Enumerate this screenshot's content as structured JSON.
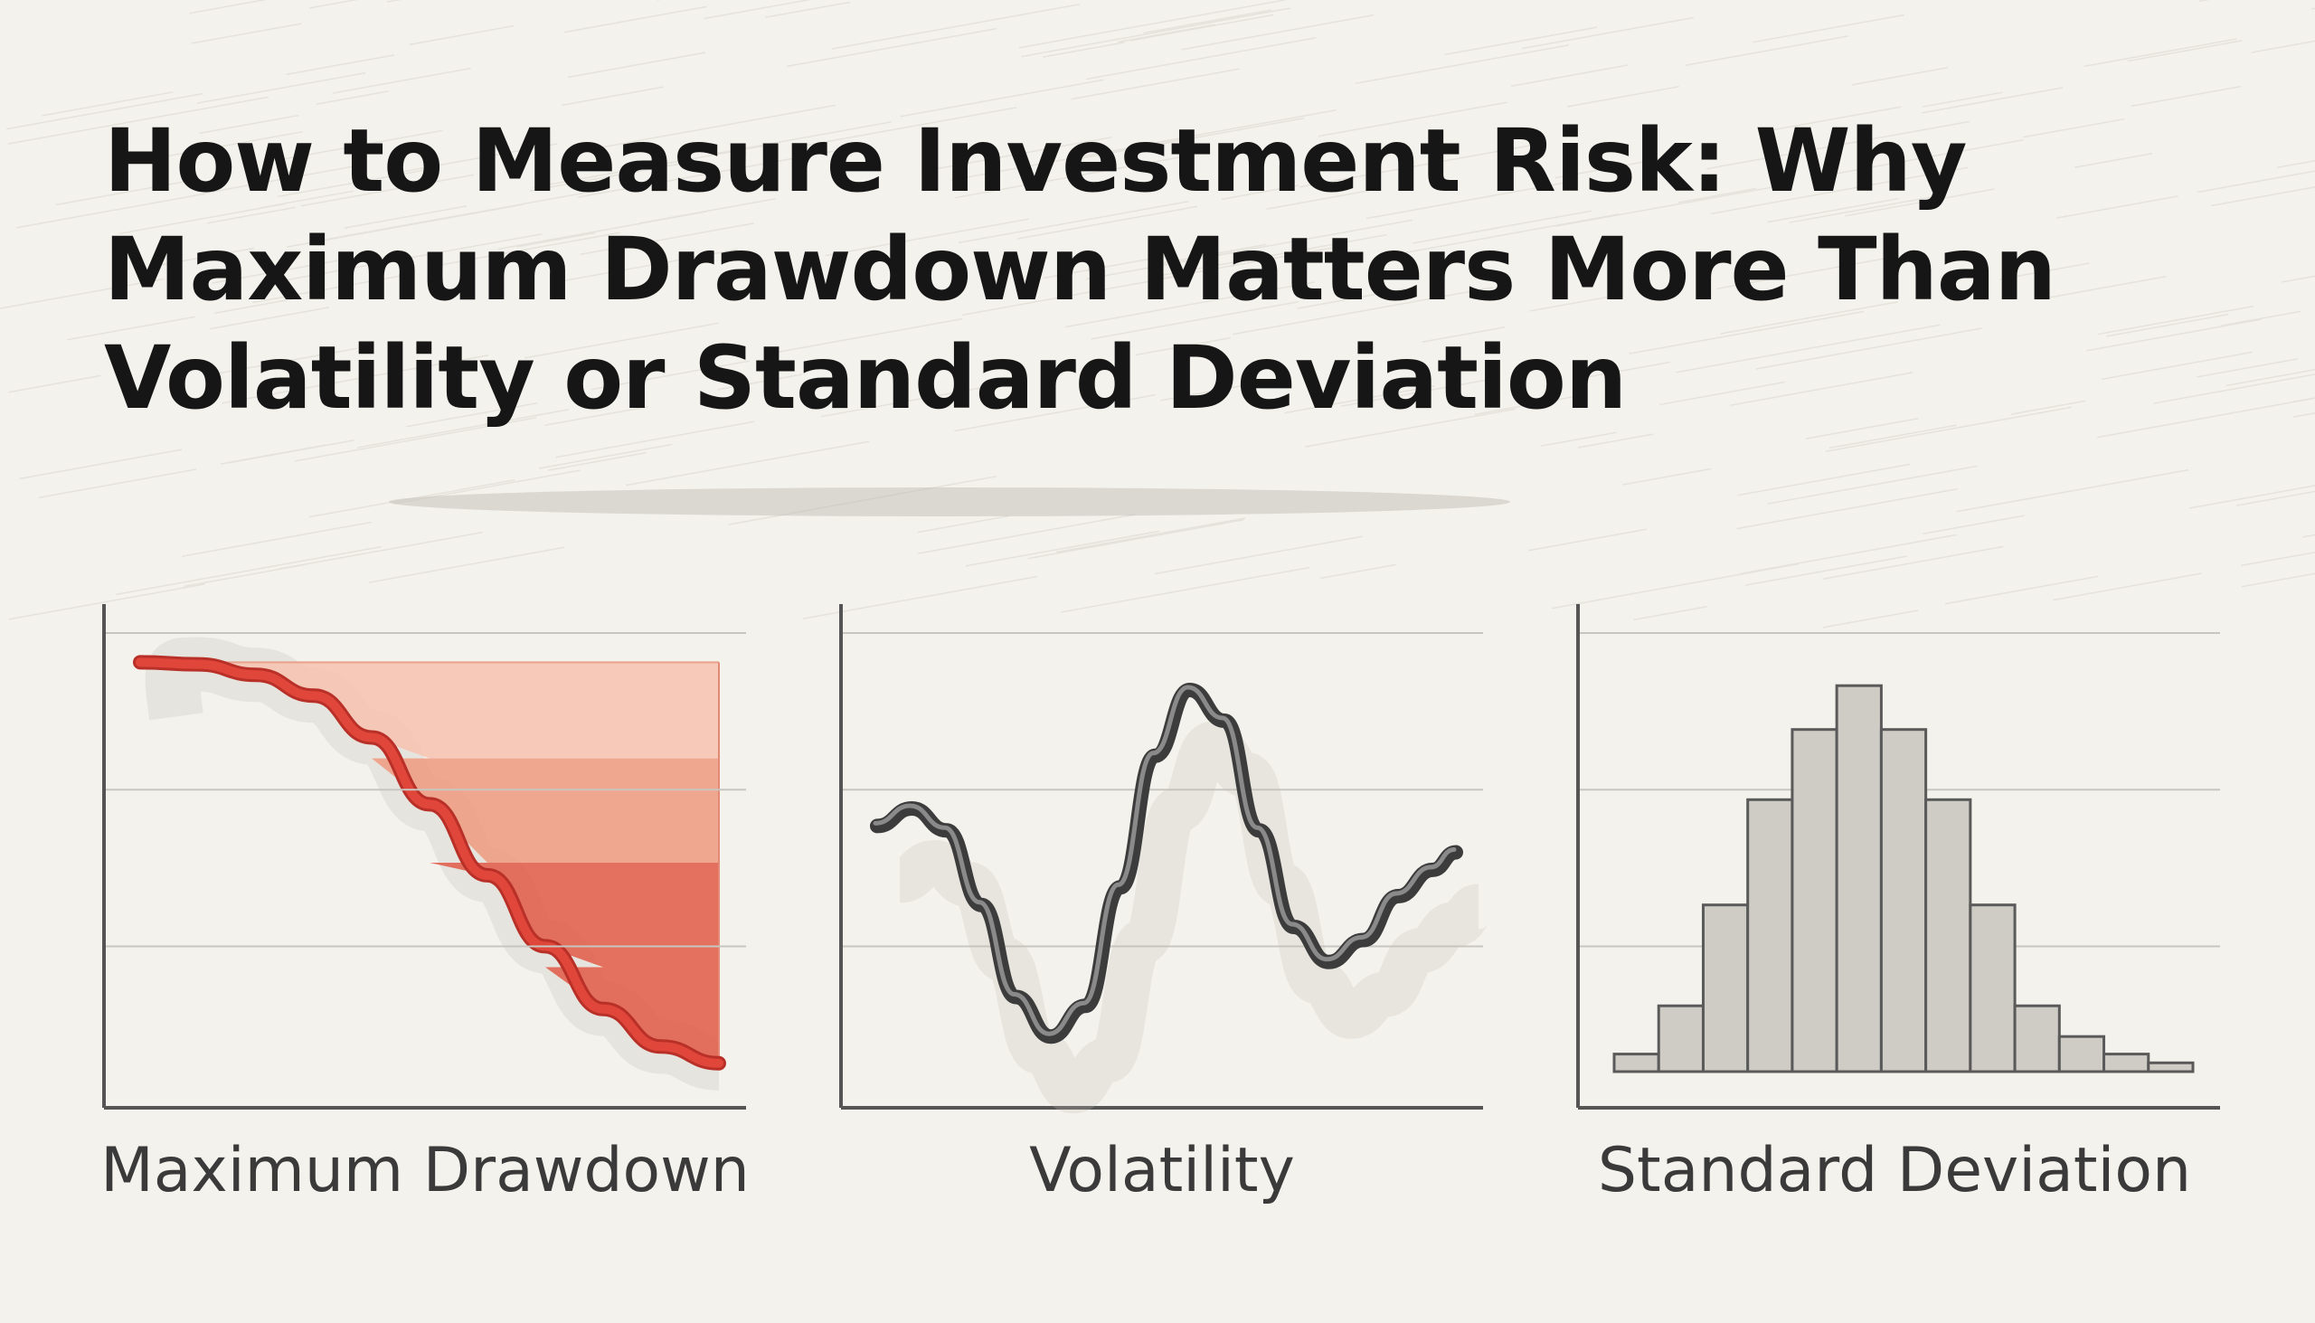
{
  "page": {
    "title_lines": [
      "How to Measure Investment Risk: Why",
      "Maximum Drawdown Matters More Than",
      "Volatility or Standard Deviation"
    ]
  },
  "colors": {
    "background": "#f4f2ec",
    "ink": "#161616",
    "drawdown_red": "#e0463a",
    "drawdown_fill_light": "#f6c2b0",
    "drawdown_fill_mid": "#ef9a7f",
    "drawdown_fill_dark": "#e05a48",
    "volatility_line": "#555555",
    "histogram_fill": "#cfccc6",
    "histogram_stroke": "#5a5a5a",
    "axis": "#555555",
    "grid": "#c8c6c0"
  },
  "chart_data": [
    {
      "type": "area",
      "title": "Maximum Drawdown",
      "x": [
        0,
        0.1,
        0.2,
        0.3,
        0.4,
        0.5,
        0.6,
        0.7,
        0.8,
        0.9,
        1.0
      ],
      "y": [
        0.98,
        0.975,
        0.95,
        0.9,
        0.8,
        0.64,
        0.47,
        0.3,
        0.15,
        0.06,
        0.02
      ],
      "bands": [
        0.75,
        0.5,
        0.25
      ],
      "xlim": [
        0,
        1
      ],
      "ylim": [
        0,
        1.05
      ],
      "grid": true
    },
    {
      "type": "line",
      "title": "Volatility",
      "x": [
        0,
        0.06,
        0.12,
        0.18,
        0.24,
        0.3,
        0.36,
        0.42,
        0.48,
        0.54,
        0.6,
        0.66,
        0.72,
        0.78,
        0.84,
        0.9,
        0.96,
        1.0
      ],
      "y": [
        0.56,
        0.6,
        0.55,
        0.38,
        0.17,
        0.08,
        0.15,
        0.42,
        0.72,
        0.87,
        0.8,
        0.55,
        0.33,
        0.25,
        0.3,
        0.4,
        0.46,
        0.5
      ],
      "xlim": [
        0,
        1
      ],
      "ylim": [
        0,
        1
      ],
      "grid": true
    },
    {
      "type": "bar",
      "title": "Standard Deviation",
      "values": [
        0.04,
        0.15,
        0.38,
        0.62,
        0.78,
        0.88,
        0.78,
        0.62,
        0.38,
        0.15,
        0.08,
        0.04,
        0.02
      ],
      "ylim": [
        0,
        1
      ],
      "grid": true
    }
  ]
}
